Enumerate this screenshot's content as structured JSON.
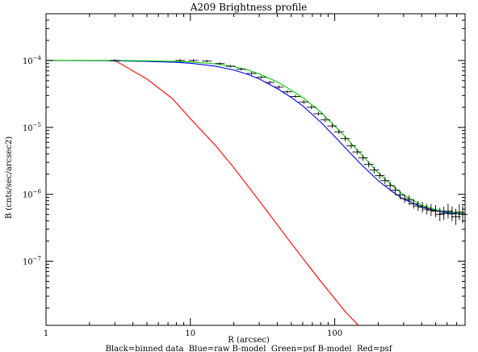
{
  "chart_data": {
    "type": "line",
    "title": "A209 Brightness profile",
    "xlabel": "R (arcsec)",
    "ylabel": "B (cnts/sec/arcsec2)",
    "caption": "Black=binned data  Blue=raw B-model  Green=psf B-model  Red=psf",
    "x_scale": "log",
    "y_scale": "log",
    "xlim": [
      1,
      800
    ],
    "ylim": [
      1.1e-08,
      0.0005
    ],
    "grid": false,
    "legend": "caption below the x-axis label",
    "x_ticks": [
      {
        "value": 1,
        "label": "1"
      },
      {
        "value": 10,
        "label": "10"
      },
      {
        "value": 100,
        "label": "100"
      }
    ],
    "y_ticks": [
      {
        "value": 0.0001,
        "base": "10",
        "exp": "−4"
      },
      {
        "value": 1e-05,
        "base": "10",
        "exp": "−5"
      },
      {
        "value": 1e-06,
        "base": "10",
        "exp": "−6"
      },
      {
        "value": 1e-07,
        "base": "10",
        "exp": "−7"
      }
    ],
    "series": [
      {
        "color": "#ff0000",
        "style": "line",
        "x": [
          1,
          2,
          3,
          5,
          7.5,
          10,
          15,
          20,
          30,
          50,
          80,
          120,
          160
        ],
        "y": [
          0.0001,
          0.0001,
          0.0001,
          5.3e-05,
          2.7e-05,
          1.35e-05,
          5.3e-06,
          2.5e-06,
          8e-07,
          1.85e-07,
          5e-08,
          1.7e-08,
          9e-09
        ]
      },
      {
        "color": "#0000ff",
        "style": "line",
        "x": [
          1,
          3,
          5,
          8,
          10,
          15,
          20,
          25,
          30,
          40,
          50,
          60,
          80,
          100,
          120,
          150,
          200,
          250,
          300,
          400,
          500,
          600,
          700,
          800
        ],
        "y": [
          0.0001,
          9.9e-05,
          9.7e-05,
          9.4e-05,
          9.1e-05,
          8.2e-05,
          7.2e-05,
          6.2e-05,
          5.3e-05,
          3.8e-05,
          2.8e-05,
          2.1e-05,
          1.2e-05,
          7.3e-06,
          4.8e-06,
          2.9e-06,
          1.6e-06,
          1.1e-06,
          8.5e-07,
          6.5e-07,
          5.7e-07,
          5.3e-07,
          5.2e-07,
          5.2e-07
        ]
      },
      {
        "color": "#00cc00",
        "style": "line",
        "x": [
          1,
          3,
          5,
          8,
          10,
          15,
          20,
          25,
          30,
          40,
          50,
          60,
          80,
          100,
          120,
          150,
          200,
          250,
          300,
          400,
          500,
          600,
          700,
          800
        ],
        "y": [
          0.0001,
          0.0001,
          9.9e-05,
          9.7e-05,
          9.5e-05,
          8.9e-05,
          8.1e-05,
          7.2e-05,
          6.3e-05,
          4.8e-05,
          3.6e-05,
          2.8e-05,
          1.7e-05,
          1.05e-05,
          7e-06,
          4.1e-06,
          2.1e-06,
          1.35e-06,
          9.8e-07,
          6.9e-07,
          5.9e-07,
          5.5e-07,
          5.3e-07,
          5.2e-07
        ]
      },
      {
        "color": "#000000",
        "style": "points",
        "x": [
          3.0,
          8.5,
          10.5,
          13,
          16,
          19,
          22.5,
          26.5,
          31,
          35.5,
          41,
          47,
          53.5,
          61,
          69,
          77,
          86,
          96,
          107,
          118,
          130,
          143,
          157,
          172,
          188,
          205,
          223,
          242,
          262,
          283,
          305,
          328,
          352,
          378,
          405,
          435,
          465,
          500,
          535,
          570,
          610,
          650,
          690,
          730,
          770
        ],
        "y": [
          0.0001,
          0.0001,
          0.0001,
          9.8e-05,
          9e-05,
          8.2e-05,
          7.4e-05,
          6.4e-05,
          5.6e-05,
          4.7e-05,
          4e-05,
          3.4e-05,
          2.9e-05,
          2.4e-05,
          2e-05,
          1.6e-05,
          1.3e-05,
          1.05e-05,
          8.6e-06,
          6.8e-06,
          5.3e-06,
          4.3e-06,
          3.5e-06,
          2.8e-06,
          2.3e-06,
          1.9e-06,
          1.6e-06,
          1.35e-06,
          1.15e-06,
          9.8e-07,
          8.6e-07,
          8.2e-07,
          7.2e-07,
          6.7e-07,
          6.4e-07,
          6e-07,
          5.8e-07,
          5.6e-07,
          5e-07,
          5.2e-07,
          5.6e-07,
          5.1e-07,
          4.6e-07,
          5.4e-07,
          5e-07
        ],
        "yerr": [
          0.02,
          0.02,
          0.02,
          0.02,
          0.02,
          0.02,
          0.02,
          0.02,
          0.02,
          0.025,
          0.025,
          0.025,
          0.025,
          0.03,
          0.03,
          0.03,
          0.035,
          0.035,
          0.035,
          0.04,
          0.04,
          0.04,
          0.045,
          0.045,
          0.05,
          0.05,
          0.055,
          0.055,
          0.06,
          0.06,
          0.065,
          0.07,
          0.07,
          0.075,
          0.08,
          0.08,
          0.09,
          0.09,
          0.1,
          0.1,
          0.11,
          0.11,
          0.12,
          0.12,
          0.13
        ]
      }
    ]
  }
}
